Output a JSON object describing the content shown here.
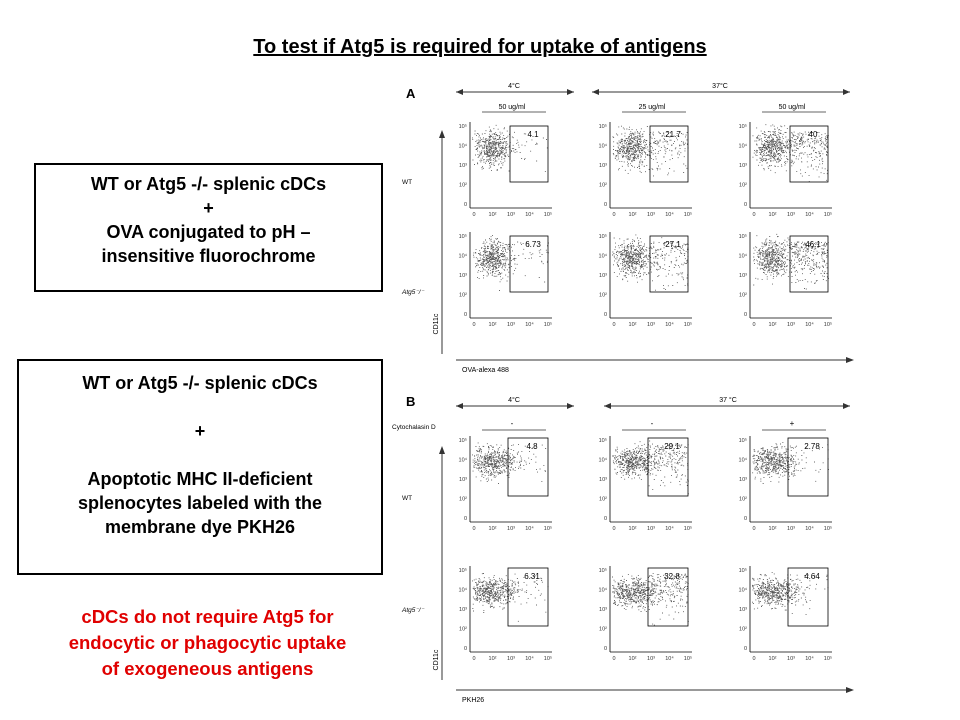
{
  "title": "To test if Atg5 is required for uptake of antigens",
  "box1": {
    "lines": [
      "WT or Atg5 -/- splenic cDCs",
      "+",
      "OVA conjugated to pH –",
      "insensitive fluorochrome"
    ]
  },
  "box2": {
    "lines": [
      "WT or Atg5 -/- splenic cDCs",
      "",
      "+",
      "",
      "Apoptotic MHC II-deficient",
      "splenocytes labeled with the",
      "membrane dye PKH26"
    ]
  },
  "conclusion": {
    "lines": [
      "cDCs do not require Atg5 for",
      "endocytic or phagocytic uptake",
      "of exogeneous antigens"
    ],
    "color": "#e00000"
  },
  "figure": {
    "panelA": {
      "letter": "A",
      "temps": [
        "4°C",
        "37°C"
      ],
      "concs": [
        "50 ug/ml",
        "25 ug/ml",
        "50 ug/ml"
      ],
      "rows": [
        "WT",
        "Atg5⁻/⁻"
      ],
      "ylabel": "CD11c",
      "xlabel": "OVA-alexa 488",
      "values": [
        [
          "4.1",
          "21.7",
          "40"
        ],
        [
          "6.73",
          "27.1",
          "46.1"
        ]
      ],
      "yticks": [
        "10⁵",
        "10⁴",
        "10³",
        "10²",
        "0"
      ],
      "xticks": [
        "0",
        "10²",
        "10³",
        "10⁴",
        "10⁵"
      ]
    },
    "panelB": {
      "letter": "B",
      "cyto_label": "Cytochalasin D",
      "temps": [
        "4°C",
        "37 °C"
      ],
      "cyto": [
        "-",
        "-",
        "+"
      ],
      "rows": [
        "WT",
        "Atg5⁻/⁻"
      ],
      "ylabel": "CD11c",
      "xlabel": "PKH26",
      "values": [
        [
          "4.8",
          "29.1",
          "2.78"
        ],
        [
          "6.31",
          "32.8",
          "4.64"
        ]
      ],
      "yticks": [
        "10⁵",
        "10⁴",
        "10³",
        "10²",
        "0"
      ],
      "xticks": [
        "0",
        "10²",
        "10³",
        "10⁴",
        "10⁵"
      ]
    }
  }
}
